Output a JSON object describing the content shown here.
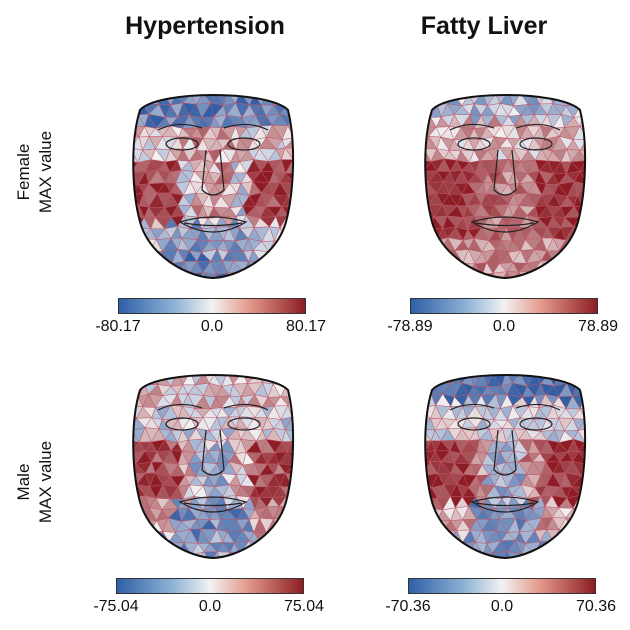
{
  "columns": {
    "left": "Hypertension",
    "right": "Fatty Liver"
  },
  "rows": {
    "top": {
      "line1": "Female",
      "line2": "MAX value"
    },
    "bottom": {
      "line1": "Male",
      "line2": "MAX value"
    }
  },
  "panels": {
    "female_hypertension": {
      "min": "-80.17",
      "mid": "0.0",
      "max": "80.17"
    },
    "female_fatty_liver": {
      "min": "-78.89",
      "mid": "0.0",
      "max": "78.89"
    },
    "male_hypertension": {
      "min": "-75.04",
      "mid": "0.0",
      "max": "75.04"
    },
    "male_fatty_liver": {
      "min": "-70.36",
      "mid": "0.0",
      "max": "70.36"
    }
  },
  "colors": {
    "negative": "#2f5fa6",
    "neutral": "#f2f2f2",
    "positive": "#8c1d24",
    "mesh": "#c0566a",
    "outline": "#111111"
  }
}
